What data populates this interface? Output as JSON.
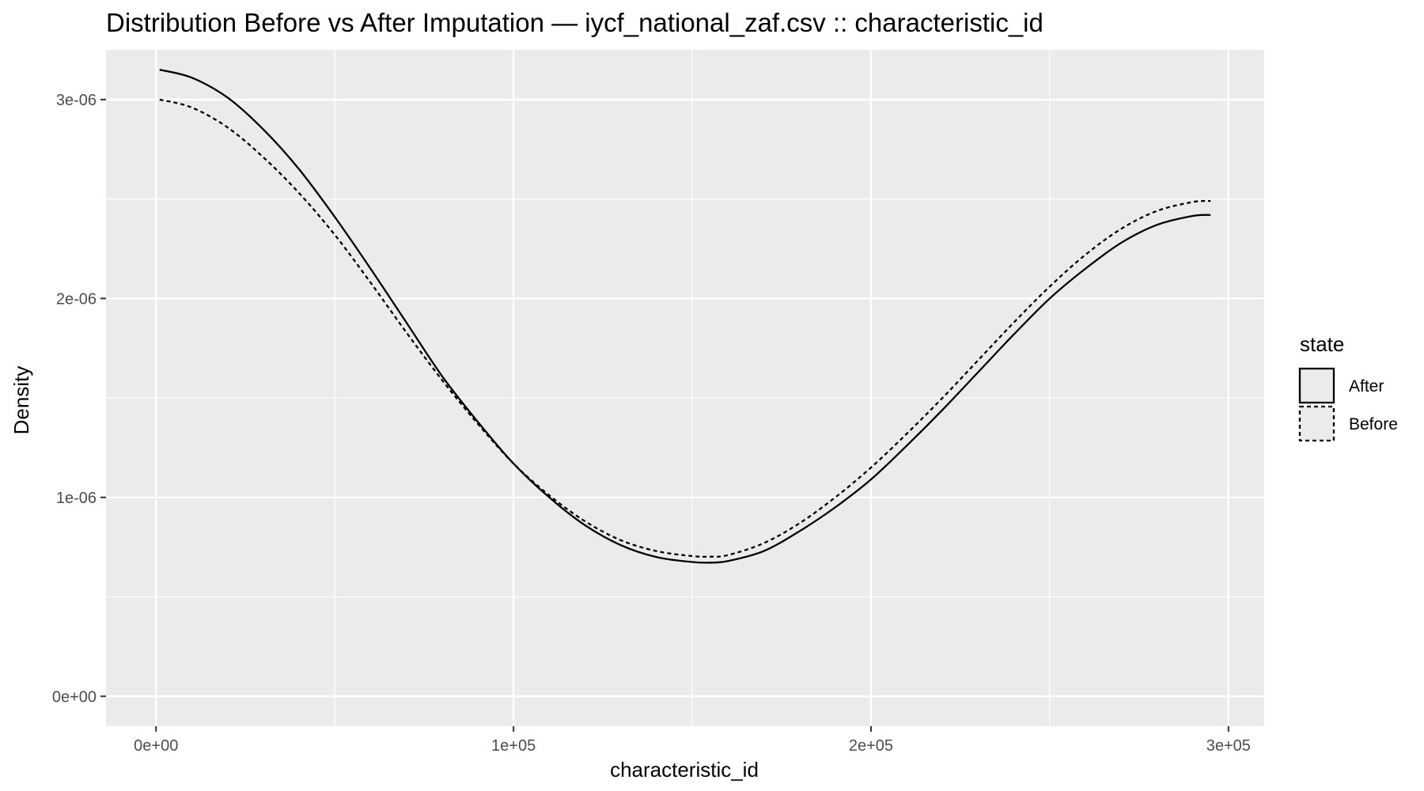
{
  "chart_data": {
    "type": "line",
    "title": "Distribution Before vs After Imputation — iycf_national_zaf.csv :: characteristic_id",
    "xlabel": "characteristic_id",
    "ylabel": "Density",
    "xlim": [
      -14000,
      310000
    ],
    "ylim": [
      -1.5e-07,
      3.25e-06
    ],
    "x_ticks": [
      {
        "value": 0,
        "label": "0e+00"
      },
      {
        "value": 100000,
        "label": "1e+05"
      },
      {
        "value": 200000,
        "label": "2e+05"
      },
      {
        "value": 300000,
        "label": "3e+05"
      }
    ],
    "y_ticks": [
      {
        "value": 0,
        "label": "0e+00"
      },
      {
        "value": 1e-06,
        "label": "1e-06"
      },
      {
        "value": 2e-06,
        "label": "2e-06"
      },
      {
        "value": 3e-06,
        "label": "3e-06"
      }
    ],
    "grid": true,
    "legend": {
      "title": "state",
      "position": "right"
    },
    "series": [
      {
        "name": "After",
        "line_style": "solid",
        "color": "#000000",
        "x": [
          1000,
          10000,
          20000,
          30000,
          40000,
          50000,
          60000,
          70000,
          80000,
          90000,
          100000,
          110000,
          120000,
          130000,
          140000,
          150000,
          155000,
          160000,
          170000,
          180000,
          190000,
          200000,
          210000,
          220000,
          230000,
          240000,
          250000,
          260000,
          270000,
          280000,
          290000,
          295000
        ],
        "y": [
          3.15e-06,
          3.11e-06,
          3.01e-06,
          2.85e-06,
          2.65e-06,
          2.41e-06,
          2.15e-06,
          1.88e-06,
          1.61e-06,
          1.38e-06,
          1.17e-06,
          1e-06,
          8.6e-07,
          7.6e-07,
          7e-07,
          6.75e-07,
          6.72e-07,
          6.8e-07,
          7.3e-07,
          8.3e-07,
          9.5e-07,
          1.09e-06,
          1.26e-06,
          1.44e-06,
          1.63e-06,
          1.82e-06,
          2e-06,
          2.15e-06,
          2.28e-06,
          2.37e-06,
          2.415e-06,
          2.42e-06
        ]
      },
      {
        "name": "Before",
        "line_style": "dashed",
        "color": "#000000",
        "x": [
          1000,
          10000,
          20000,
          30000,
          40000,
          50000,
          60000,
          70000,
          80000,
          90000,
          100000,
          110000,
          120000,
          130000,
          140000,
          150000,
          155000,
          160000,
          170000,
          180000,
          190000,
          200000,
          210000,
          220000,
          230000,
          240000,
          250000,
          260000,
          270000,
          280000,
          290000,
          295000
        ],
        "y": [
          3e-06,
          2.96e-06,
          2.86e-06,
          2.71e-06,
          2.53e-06,
          2.32e-06,
          2.08e-06,
          1.83e-06,
          1.59e-06,
          1.37e-06,
          1.17e-06,
          1.01e-06,
          8.8e-07,
          7.85e-07,
          7.3e-07,
          7.05e-07,
          7.02e-07,
          7.1e-07,
          7.7e-07,
          8.7e-07,
          1e-06,
          1.15e-06,
          1.32e-06,
          1.5e-06,
          1.69e-06,
          1.88e-06,
          2.06e-06,
          2.22e-06,
          2.35e-06,
          2.44e-06,
          2.485e-06,
          2.49e-06
        ]
      }
    ]
  }
}
